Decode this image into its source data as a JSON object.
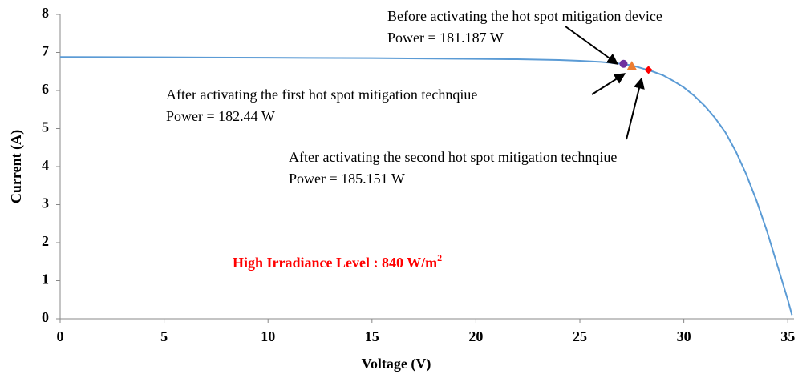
{
  "chart_data": {
    "type": "line",
    "xlabel": "Voltage (V)",
    "ylabel": "Current (A)",
    "x": [
      0,
      5,
      10,
      15,
      20,
      22,
      24,
      25,
      26,
      27,
      27.5,
      28,
      28.5,
      29,
      29.5,
      30,
      30.5,
      31,
      31.5,
      32,
      32.5,
      33,
      33.5,
      34,
      34.5,
      35,
      35.2
    ],
    "series": [
      {
        "color": "#5b9bd5",
        "values": [
          6.88,
          6.87,
          6.86,
          6.85,
          6.83,
          6.82,
          6.8,
          6.78,
          6.75,
          6.7,
          6.66,
          6.58,
          6.5,
          6.4,
          6.25,
          6.08,
          5.86,
          5.6,
          5.28,
          4.9,
          4.4,
          3.8,
          3.1,
          2.3,
          1.4,
          0.5,
          0.1
        ]
      }
    ],
    "markers": [
      {
        "x": 27.1,
        "y": 6.7,
        "color": "#7030a0",
        "shape": "circle"
      },
      {
        "x": 27.5,
        "y": 6.65,
        "color": "#ed7d31",
        "shape": "triangle"
      },
      {
        "x": 28.3,
        "y": 6.54,
        "color": "#ff0000",
        "shape": "diamond"
      }
    ],
    "annotations": [
      {
        "lines": [
          "Before activating the hot spot mitigation device",
          "Power = 181.187 W"
        ]
      },
      {
        "lines": [
          "After activating the first hot spot mitigation technqiue",
          "Power = 182.44 W"
        ]
      },
      {
        "lines": [
          "After activating the second hot spot mitigation technqiue",
          "Power = 185.151 W"
        ]
      }
    ],
    "note": {
      "text": "High Irradiance Level : 840 W/m",
      "superscript": "2",
      "color": "#ff0000"
    },
    "xlim": [
      0,
      35.3
    ],
    "xticks": [
      0,
      5,
      10,
      15,
      20,
      25,
      30,
      35
    ],
    "ylim": [
      0,
      8
    ],
    "yticks": [
      0,
      1,
      2,
      3,
      4,
      5,
      6,
      7,
      8
    ],
    "grid": false
  }
}
